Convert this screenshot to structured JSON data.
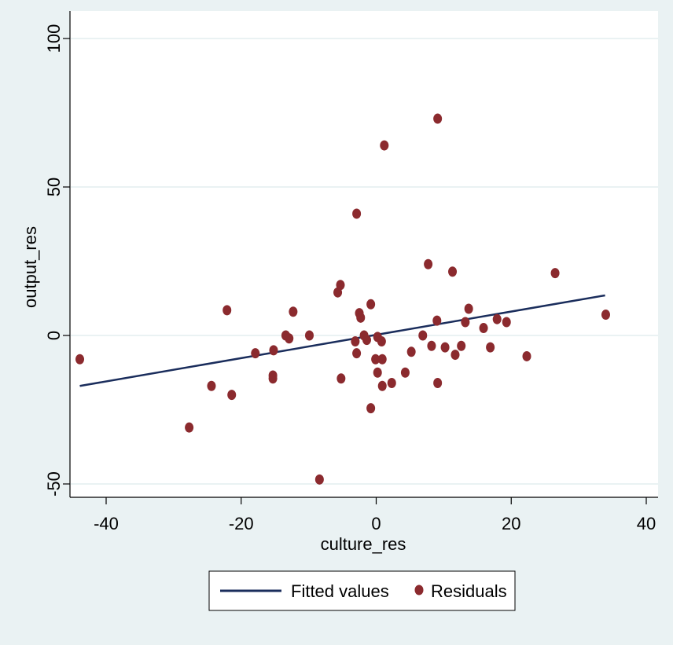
{
  "chart_data": {
    "type": "scatter",
    "title": "",
    "xlabel": "culture_res",
    "ylabel": "output_res",
    "xlim": [
      -45,
      41
    ],
    "ylim": [
      -55,
      103
    ],
    "x_ticks": [
      -40,
      -20,
      0,
      20,
      40
    ],
    "y_ticks": [
      -50,
      0,
      50,
      100
    ],
    "grid": "horizontal",
    "legend_position": "bottom",
    "colors": {
      "background": "#eaf2f3",
      "plot_area": "#ffffff",
      "grid": "#eaf2f3",
      "fitted_line": "#1a2d5c",
      "residual_marker": "#8b2a2e"
    },
    "series": [
      {
        "name": "Fitted values",
        "type": "line",
        "points": [
          {
            "x": -43.9,
            "y": -17
          },
          {
            "x": 33.9,
            "y": 13.5
          }
        ]
      },
      {
        "name": "Residuals",
        "type": "scatter",
        "points": [
          {
            "x": -43.9,
            "y": -8
          },
          {
            "x": -27.7,
            "y": -31
          },
          {
            "x": -24.4,
            "y": -17
          },
          {
            "x": -22.1,
            "y": 8.5
          },
          {
            "x": -21.4,
            "y": -20
          },
          {
            "x": -17.9,
            "y": -6
          },
          {
            "x": -15.2,
            "y": -5
          },
          {
            "x": -15.3,
            "y": -13.5
          },
          {
            "x": -15.3,
            "y": -14.5
          },
          {
            "x": -13.4,
            "y": 0
          },
          {
            "x": -12.9,
            "y": -1
          },
          {
            "x": -12.3,
            "y": 8
          },
          {
            "x": -9.9,
            "y": 0
          },
          {
            "x": -8.4,
            "y": -48.5
          },
          {
            "x": -5.7,
            "y": 14.5
          },
          {
            "x": -5.3,
            "y": 17
          },
          {
            "x": -5.2,
            "y": -14.5
          },
          {
            "x": -2.9,
            "y": 41
          },
          {
            "x": -2.5,
            "y": 7.5
          },
          {
            "x": -2.3,
            "y": 6
          },
          {
            "x": -3.1,
            "y": -2
          },
          {
            "x": -2.9,
            "y": -6
          },
          {
            "x": -1.8,
            "y": 0
          },
          {
            "x": -1.4,
            "y": -1.5
          },
          {
            "x": -0.8,
            "y": 10.5
          },
          {
            "x": -0.8,
            "y": -24.5
          },
          {
            "x": -0.1,
            "y": -8
          },
          {
            "x": 0.2,
            "y": -12.5
          },
          {
            "x": 0.2,
            "y": -0.5
          },
          {
            "x": 0.8,
            "y": -2
          },
          {
            "x": 0.9,
            "y": -8
          },
          {
            "x": 0.9,
            "y": -17
          },
          {
            "x": 1.2,
            "y": 64
          },
          {
            "x": 2.3,
            "y": -16
          },
          {
            "x": 4.3,
            "y": -12.5
          },
          {
            "x": 5.2,
            "y": -5.5
          },
          {
            "x": 6.9,
            "y": 0
          },
          {
            "x": 7.7,
            "y": 24
          },
          {
            "x": 8.2,
            "y": -3.5
          },
          {
            "x": 9.0,
            "y": 5
          },
          {
            "x": 9.1,
            "y": 73
          },
          {
            "x": 9.1,
            "y": -16
          },
          {
            "x": 10.2,
            "y": -4
          },
          {
            "x": 11.3,
            "y": 21.5
          },
          {
            "x": 11.7,
            "y": -6.5
          },
          {
            "x": 12.6,
            "y": -3.5
          },
          {
            "x": 13.2,
            "y": 4.5
          },
          {
            "x": 13.7,
            "y": 9
          },
          {
            "x": 15.9,
            "y": 2.5
          },
          {
            "x": 16.9,
            "y": -4
          },
          {
            "x": 17.9,
            "y": 5.5
          },
          {
            "x": 19.3,
            "y": 4.5
          },
          {
            "x": 22.3,
            "y": -7
          },
          {
            "x": 26.5,
            "y": 21
          },
          {
            "x": 34.0,
            "y": 7
          }
        ]
      }
    ]
  }
}
